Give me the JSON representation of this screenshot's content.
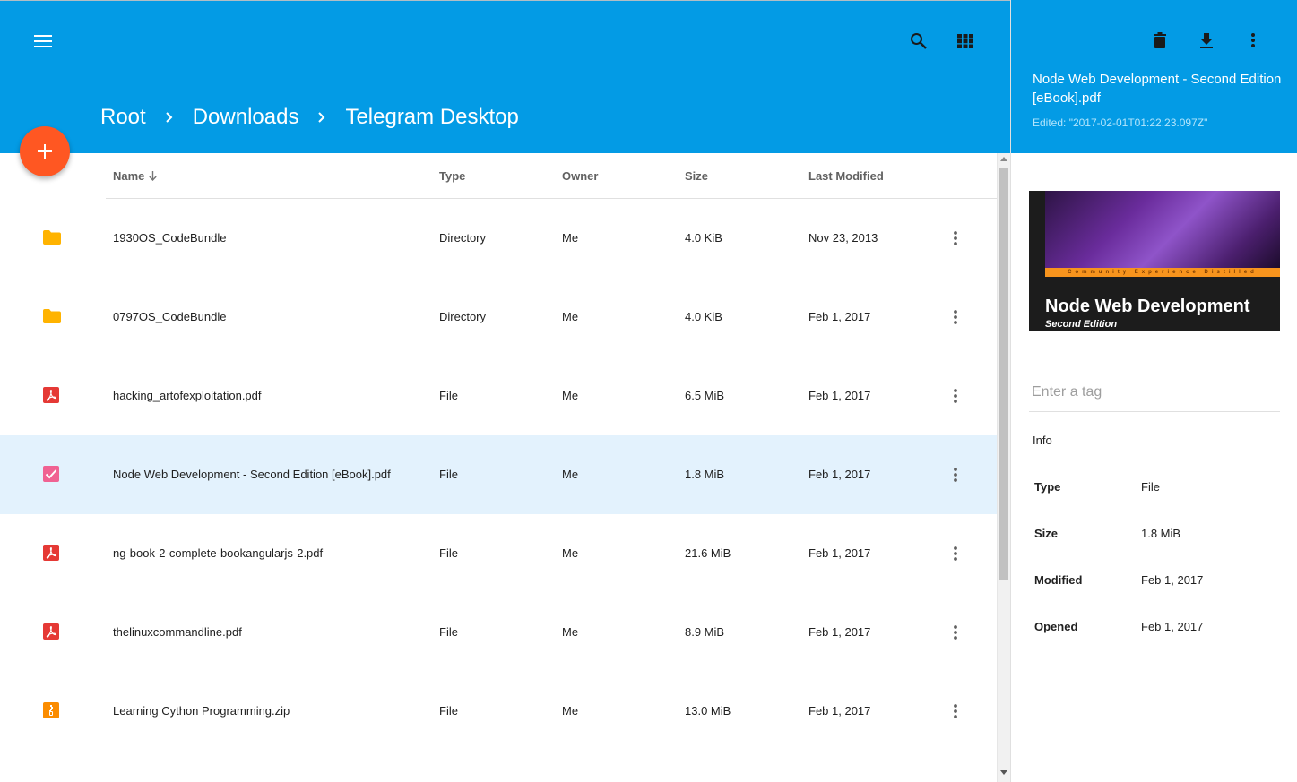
{
  "header": {
    "breadcrumb": [
      "Root",
      "Downloads",
      "Telegram Desktop"
    ]
  },
  "table": {
    "columns": {
      "name": "Name",
      "type": "Type",
      "owner": "Owner",
      "size": "Size",
      "modified": "Last Modified"
    },
    "rows": [
      {
        "icon": "folder-icon",
        "name": "1930OS_CodeBundle",
        "type": "Directory",
        "owner": "Me",
        "size": "4.0 KiB",
        "modified": "Nov 23, 2013"
      },
      {
        "icon": "folder-icon",
        "name": "0797OS_CodeBundle",
        "type": "Directory",
        "owner": "Me",
        "size": "4.0 KiB",
        "modified": "Feb 1, 2017"
      },
      {
        "icon": "pdf-icon",
        "name": "hacking_artofexploitation.pdf",
        "type": "File",
        "owner": "Me",
        "size": "6.5 MiB",
        "modified": "Feb 1, 2017"
      },
      {
        "icon": "checkbox-checked-icon",
        "name": "Node Web Development - Second Edition [eBook].pdf",
        "type": "File",
        "owner": "Me",
        "size": "1.8 MiB",
        "modified": "Feb 1, 2017",
        "selected": true
      },
      {
        "icon": "pdf-icon",
        "name": "ng-book-2-complete-bookangularjs-2.pdf",
        "type": "File",
        "owner": "Me",
        "size": "21.6 MiB",
        "modified": "Feb 1, 2017"
      },
      {
        "icon": "pdf-icon",
        "name": "thelinuxcommandline.pdf",
        "type": "File",
        "owner": "Me",
        "size": "8.9 MiB",
        "modified": "Feb 1, 2017"
      },
      {
        "icon": "zip-icon",
        "name": "Learning Cython Programming.zip",
        "type": "File",
        "owner": "Me",
        "size": "13.0 MiB",
        "modified": "Feb 1, 2017"
      }
    ]
  },
  "details": {
    "title": "Node Web Development - Second Edition [eBook].pdf",
    "edited": "Edited: \"2017-02-01T01:22:23.097Z\"",
    "cover": {
      "strip_text": "Community Experience Distilled",
      "title": "Node Web Development",
      "subtitle": "Second Edition"
    },
    "tag_placeholder": "Enter a tag",
    "info_label": "Info",
    "info": [
      {
        "key": "Type",
        "value": "File"
      },
      {
        "key": "Size",
        "value": "1.8 MiB"
      },
      {
        "key": "Modified",
        "value": "Feb 1, 2017"
      },
      {
        "key": "Opened",
        "value": "Feb 1, 2017"
      }
    ]
  },
  "colors": {
    "primary": "#039be5",
    "accent": "#ff5722",
    "folder": "#ffb300",
    "pdf": "#e53935",
    "zip": "#fb8c00",
    "checkbox": "#f06292",
    "selected_row": "#e3f2fd"
  }
}
